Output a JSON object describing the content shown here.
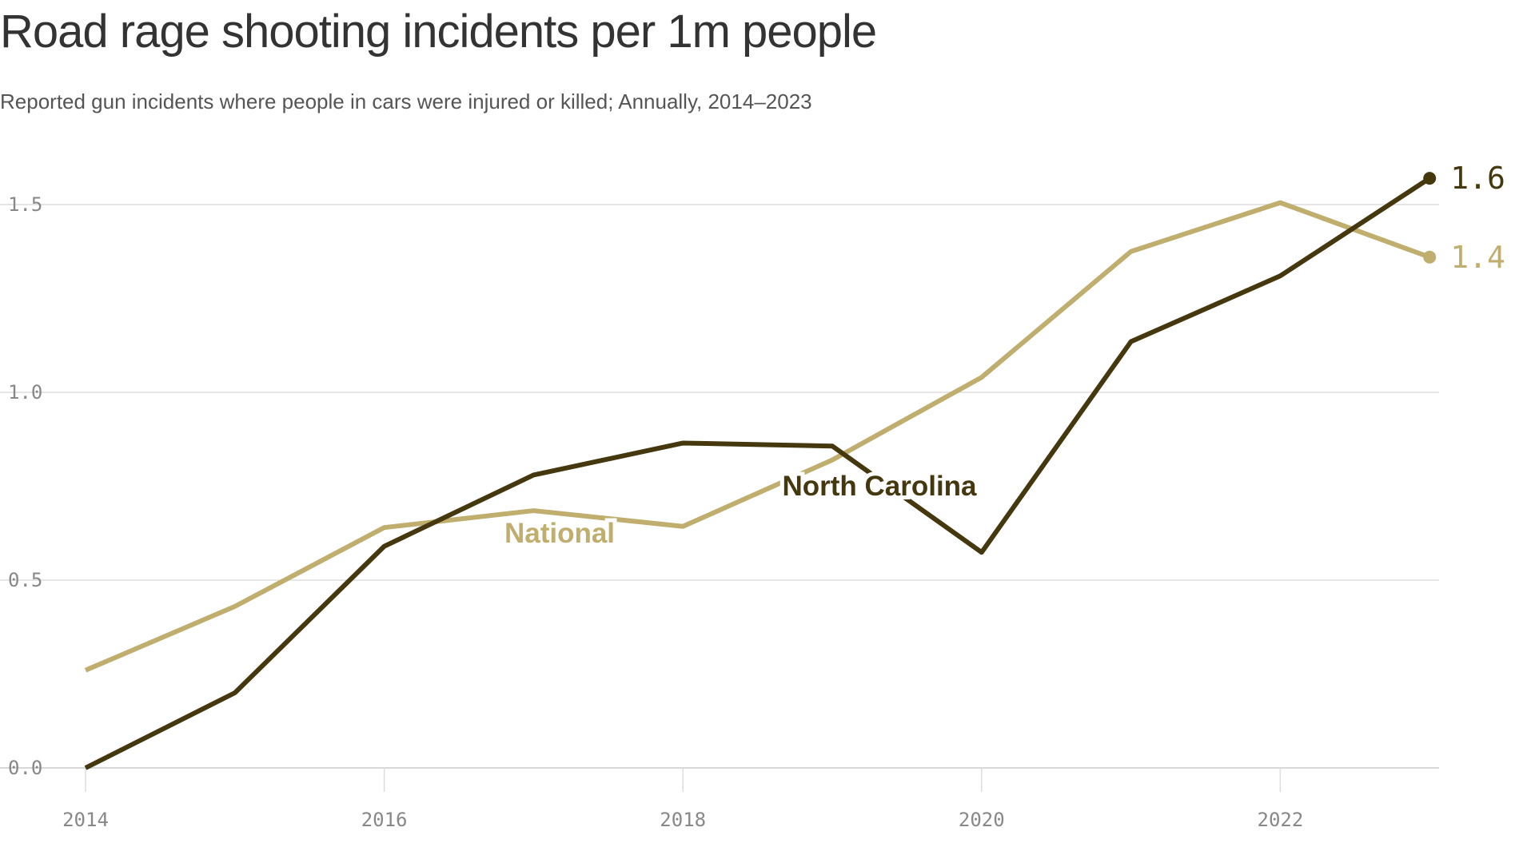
{
  "chart_data": {
    "type": "line",
    "title": "Road rage shooting incidents per 1m people",
    "subtitle": "Reported gun incidents where people in cars were injured or killed; Annually, 2014–2023",
    "x": [
      2014,
      2015,
      2016,
      2017,
      2018,
      2019,
      2020,
      2021,
      2022,
      2023
    ],
    "xticks": [
      "2014",
      "2016",
      "2018",
      "2020",
      "2022"
    ],
    "yticks": [
      "0.0",
      "0.5",
      "1.0",
      "1.5"
    ],
    "ylim": [
      0,
      1.5
    ],
    "grid": true,
    "series": [
      {
        "name": "National",
        "color": "#bfae6e",
        "end_label": "1.4",
        "values": [
          0.26,
          0.43,
          0.64,
          0.685,
          0.643,
          0.82,
          1.04,
          1.375,
          1.505,
          1.36
        ]
      },
      {
        "name": "North Carolina",
        "color": "#45380f",
        "end_label": "1.6",
        "values": [
          0.0,
          0.2,
          0.59,
          0.78,
          0.865,
          0.857,
          0.574,
          1.135,
          1.31,
          1.57
        ]
      }
    ]
  }
}
